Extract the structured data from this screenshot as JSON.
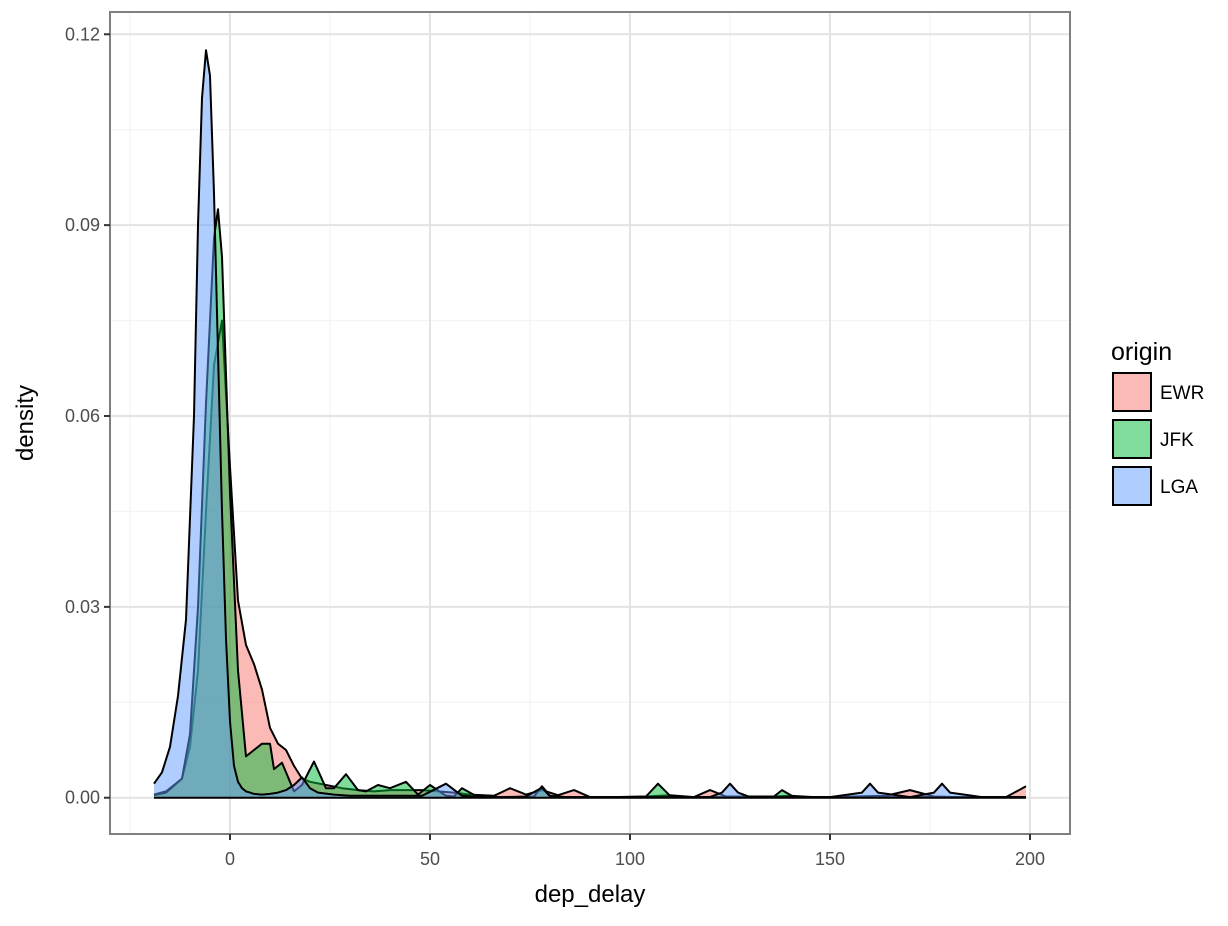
{
  "chart_data": {
    "type": "area",
    "title": "",
    "xlabel": "dep_delay",
    "ylabel": "density",
    "xlim": [
      -30,
      210
    ],
    "ylim": [
      -0.0057,
      0.1235
    ],
    "x_ticks": [
      0,
      50,
      100,
      150,
      200
    ],
    "x_tick_labels": [
      "0",
      "50",
      "100",
      "150",
      "200"
    ],
    "y_ticks": [
      0,
      0.03,
      0.06,
      0.09,
      0.12
    ],
    "y_tick_labels": [
      "0.00",
      "0.03",
      "0.06",
      "0.09",
      "0.12"
    ],
    "grid": true,
    "legend": {
      "title": "origin",
      "position": "right"
    },
    "series": [
      {
        "name": "EWR",
        "color": "#F8766D",
        "x": [
          -19,
          -16,
          -12,
          -10,
          -8,
          -6,
          -4,
          -2,
          0,
          2,
          4,
          6,
          8,
          10,
          12,
          14,
          16,
          18,
          20,
          24,
          28,
          32,
          36,
          40,
          44,
          48,
          52,
          56,
          60,
          66,
          70,
          74,
          78,
          82,
          86,
          90,
          96,
          104,
          110,
          116,
          120,
          124,
          130,
          136,
          140,
          146,
          150,
          156,
          164,
          170,
          176,
          182,
          188,
          194,
          199
        ],
        "values": [
          0.0005,
          0.001,
          0.003,
          0.008,
          0.02,
          0.045,
          0.068,
          0.075,
          0.052,
          0.031,
          0.024,
          0.021,
          0.017,
          0.011,
          0.0085,
          0.0075,
          0.005,
          0.003,
          0.0025,
          0.002,
          0.0015,
          0.0012,
          0.001,
          0.0012,
          0.0012,
          0.0012,
          0.001,
          0.0008,
          0.0005,
          0.0003,
          0.0015,
          0.0005,
          0.0012,
          0.0004,
          0.0012,
          0.0001,
          0.0001,
          0.0002,
          0.0004,
          0.0001,
          0.0012,
          0.0002,
          0.0002,
          0.0002,
          0.0003,
          0.0001,
          0.0001,
          0.0002,
          0.0003,
          0.0012,
          0.0002,
          0.0001,
          0.0001,
          0.0001,
          0.0018
        ]
      },
      {
        "name": "JFK",
        "color": "#00BA38",
        "x": [
          -19,
          -16,
          -12,
          -10,
          -8,
          -6,
          -4,
          -3,
          -2,
          0,
          2,
          4,
          6,
          8,
          10,
          11,
          13,
          14,
          16,
          18,
          21,
          24,
          26,
          29,
          32,
          34,
          37,
          40,
          44,
          47,
          50,
          54,
          56,
          58,
          62,
          66,
          70,
          74,
          76,
          78,
          80,
          84,
          90,
          96,
          100,
          104,
          107,
          110,
          114,
          120,
          126,
          132,
          136,
          138,
          141,
          146,
          152,
          160,
          170,
          180,
          190,
          199
        ],
        "values": [
          0.0004,
          0.0008,
          0.003,
          0.01,
          0.03,
          0.062,
          0.088,
          0.0925,
          0.085,
          0.048,
          0.02,
          0.0065,
          0.0075,
          0.0085,
          0.0085,
          0.0045,
          0.0055,
          0.004,
          0.001,
          0.002,
          0.0057,
          0.0015,
          0.0015,
          0.0037,
          0.0012,
          0.001,
          0.002,
          0.0015,
          0.0025,
          0.0005,
          0.002,
          0.0003,
          0.0002,
          0.0015,
          0.0001,
          0.0001,
          0.0001,
          0.0001,
          0.0002,
          0.0018,
          0.0003,
          0.0001,
          0.0001,
          0.0001,
          0.0001,
          0.0002,
          0.0022,
          0.0003,
          0.0001,
          0.0001,
          0.0001,
          0.0001,
          0.0002,
          0.0012,
          0.0001,
          0.0001,
          0.0001,
          0.0001,
          0.0001,
          0.0001,
          0.0001,
          0.0001
        ]
      },
      {
        "name": "LGA",
        "color": "#619CFF",
        "x": [
          -19,
          -17,
          -15,
          -13,
          -11,
          -9,
          -8,
          -7,
          -6,
          -5,
          -4,
          -3,
          -2,
          -1,
          0,
          1,
          2,
          3,
          4,
          5,
          6,
          8,
          10,
          12,
          14,
          16,
          18,
          20,
          22,
          26,
          30,
          36,
          42,
          48,
          54,
          58,
          62,
          68,
          74,
          78,
          80,
          84,
          90,
          100,
          110,
          120,
          123,
          125,
          127,
          130,
          140,
          150,
          158,
          160,
          162,
          170,
          176,
          178,
          180,
          188,
          199
        ],
        "values": [
          0.0022,
          0.004,
          0.008,
          0.016,
          0.028,
          0.06,
          0.09,
          0.11,
          0.1175,
          0.1135,
          0.095,
          0.07,
          0.045,
          0.025,
          0.012,
          0.005,
          0.0025,
          0.0015,
          0.001,
          0.0008,
          0.0006,
          0.0005,
          0.0006,
          0.0008,
          0.0012,
          0.002,
          0.0032,
          0.0015,
          0.0008,
          0.0005,
          0.0003,
          0.0003,
          0.0003,
          0.0003,
          0.0022,
          0.0003,
          0.0001,
          0.0001,
          0.0002,
          0.0016,
          0.0002,
          0.0001,
          0.0001,
          0.0001,
          0.0001,
          0.0001,
          0.0008,
          0.0022,
          0.0008,
          0.0001,
          0.0001,
          0.0001,
          0.0008,
          0.0022,
          0.0008,
          0.0001,
          0.0008,
          0.0022,
          0.0008,
          0.0001,
          0.0001
        ]
      }
    ]
  }
}
